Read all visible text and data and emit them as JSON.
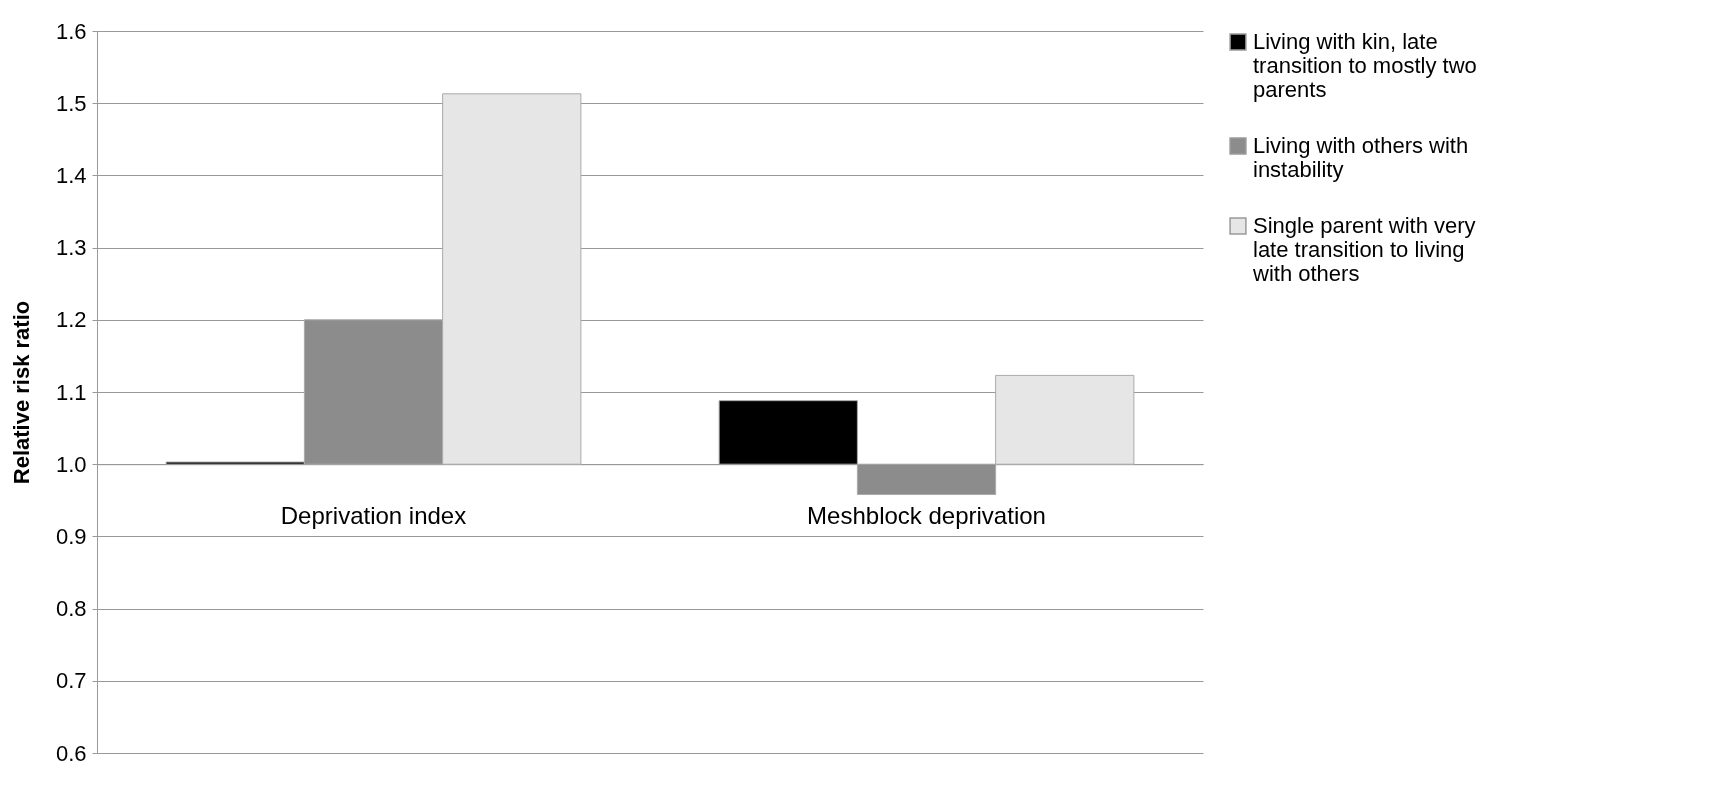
{
  "chart_data": {
    "type": "bar",
    "ylabel": "Relative risk ratio",
    "categories": [
      "Deprivation index",
      "Meshblock deprivation"
    ],
    "series": [
      {
        "name": "Living with kin, late transition to mostly two parents",
        "color": "#000000",
        "base": [
          1.0,
          1.0
        ],
        "values": [
          0.003,
          0.088
        ]
      },
      {
        "name": "Living with others with instability",
        "color": "#8c8c8c",
        "base": [
          1.0,
          1.0
        ],
        "values": [
          0.2,
          -0.042
        ]
      },
      {
        "name": "Single parent with very late transition to living with others",
        "color": "#e6e6e6",
        "base": [
          1.0,
          1.0
        ],
        "values": [
          0.513,
          0.123
        ]
      }
    ],
    "ylim": [
      0.6,
      1.6
    ],
    "yticks": [
      {
        "value": 0.6,
        "label": "0.6"
      },
      {
        "value": 0.7,
        "label": "0.7"
      },
      {
        "value": 0.8,
        "label": "0.8"
      },
      {
        "value": 0.9,
        "label": "0.9"
      },
      {
        "value": 1.0,
        "label": "1.0"
      },
      {
        "value": 1.1,
        "label": "1.1"
      },
      {
        "value": 1.2,
        "label": "1.2"
      },
      {
        "value": 1.3,
        "label": "1.3"
      },
      {
        "value": 1.4,
        "label": "1.4"
      },
      {
        "value": 1.5,
        "label": "1.5"
      },
      {
        "value": 1.6,
        "label": "1.6"
      }
    ],
    "grid": "y",
    "legend": "right"
  }
}
